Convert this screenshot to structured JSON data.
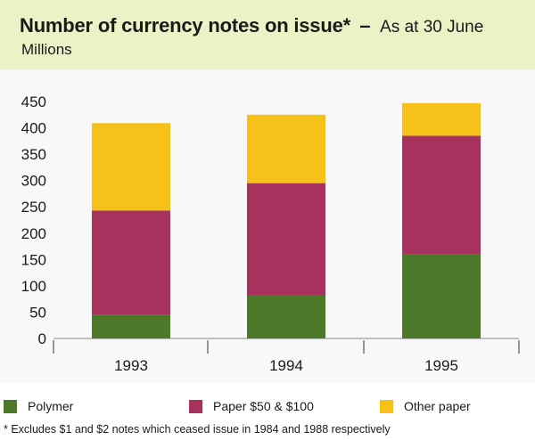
{
  "header": {
    "title": "Number of currency notes on issue*",
    "separator": "–",
    "subtitle": "As at 30 June",
    "units": "Millions"
  },
  "chart_data": {
    "type": "bar",
    "stacked": true,
    "title": "Number of currency notes on issue* – As at 30 June",
    "ylabel": "Millions",
    "xlabel": "",
    "ylim": [
      0,
      450
    ],
    "yticks": [
      0,
      50,
      100,
      150,
      200,
      250,
      300,
      350,
      400,
      450
    ],
    "categories": [
      "1993",
      "1994",
      "1995"
    ],
    "series": [
      {
        "name": "Polymer",
        "color": "#4c7a2a",
        "values": [
          45,
          82,
          160
        ]
      },
      {
        "name": "Paper $50 & $100",
        "color": "#a8325e",
        "values": [
          198,
          213,
          225
        ]
      },
      {
        "name": "Other paper",
        "color": "#f6c21a",
        "values": [
          166,
          130,
          62
        ]
      }
    ],
    "legend_position": "bottom"
  },
  "legend": [
    {
      "label": "Polymer",
      "color": "#4c7a2a"
    },
    {
      "label": "Paper $50 & $100",
      "color": "#a8325e"
    },
    {
      "label": "Other paper",
      "color": "#f6c21a"
    }
  ],
  "footnote": "* Excludes $1 and $2 notes which ceased issue in 1984 and 1988 respectively"
}
